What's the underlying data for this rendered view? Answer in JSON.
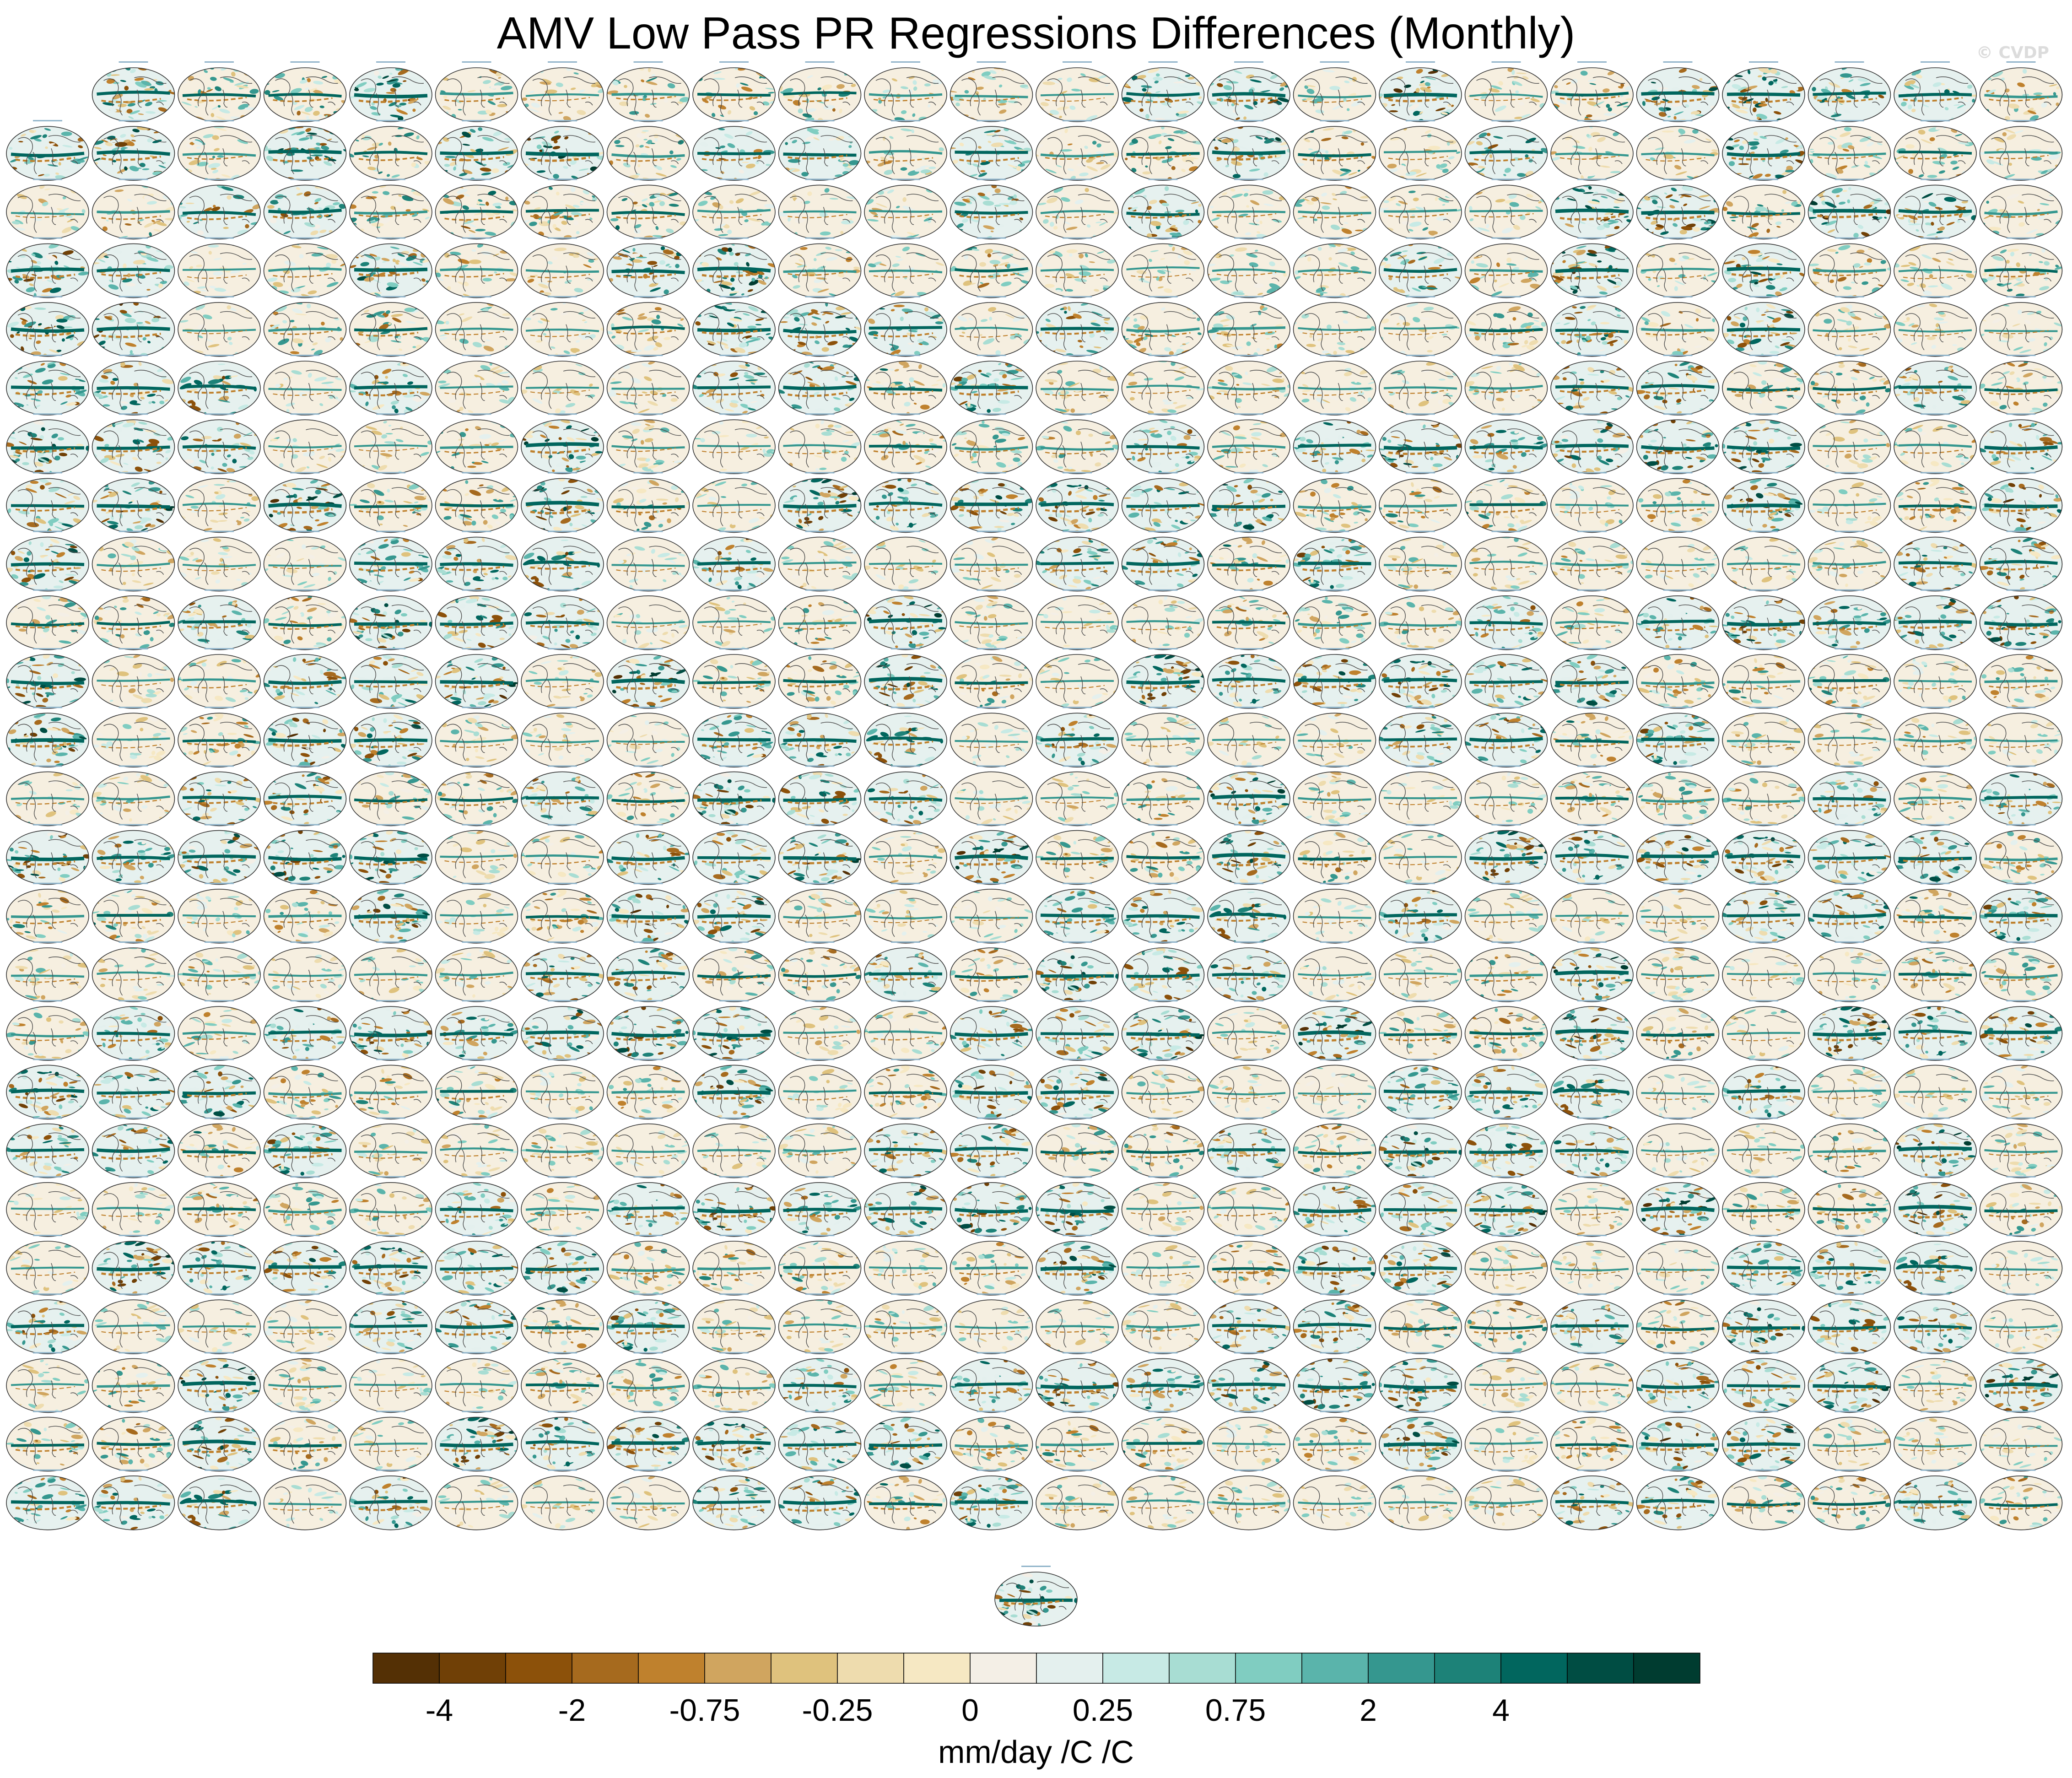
{
  "title": "AMV Low Pass PR Regressions Differences (Monthly)",
  "watermark": "© CVDP",
  "chart_data": {
    "type": "heatmap",
    "title": "AMV Low Pass PR Regressions Differences (Monthly)",
    "panel_grid": {
      "rows": 25,
      "columns": 24,
      "first_row_panels": 23,
      "extra_bottom_panels": 1,
      "panel_type": "global map, ellipse projection"
    },
    "colorbar": {
      "units": "mm/day /C /C",
      "tick_labels": [
        "-4",
        "-2",
        "-0.75",
        "-0.25",
        "0",
        "0.25",
        "0.75",
        "2",
        "4"
      ],
      "levels": [
        -5,
        -4,
        -3,
        -2,
        -1,
        -0.75,
        -0.5,
        -0.25,
        -0.1,
        0,
        0.1,
        0.25,
        0.5,
        0.75,
        1,
        2,
        3,
        4,
        5
      ],
      "colors": [
        "#543005",
        "#704006",
        "#8c510a",
        "#a66a1e",
        "#bf812d",
        "#d0a55f",
        "#dfc27d",
        "#eedcae",
        "#f6e8c3",
        "#f4efe6",
        "#e4f0ee",
        "#c7eae5",
        "#a8ddd3",
        "#80cdc1",
        "#5ab4ab",
        "#35978f",
        "#1d8278",
        "#01665e",
        "#004d43",
        "#003c30"
      ]
    },
    "legend": "bottom"
  }
}
